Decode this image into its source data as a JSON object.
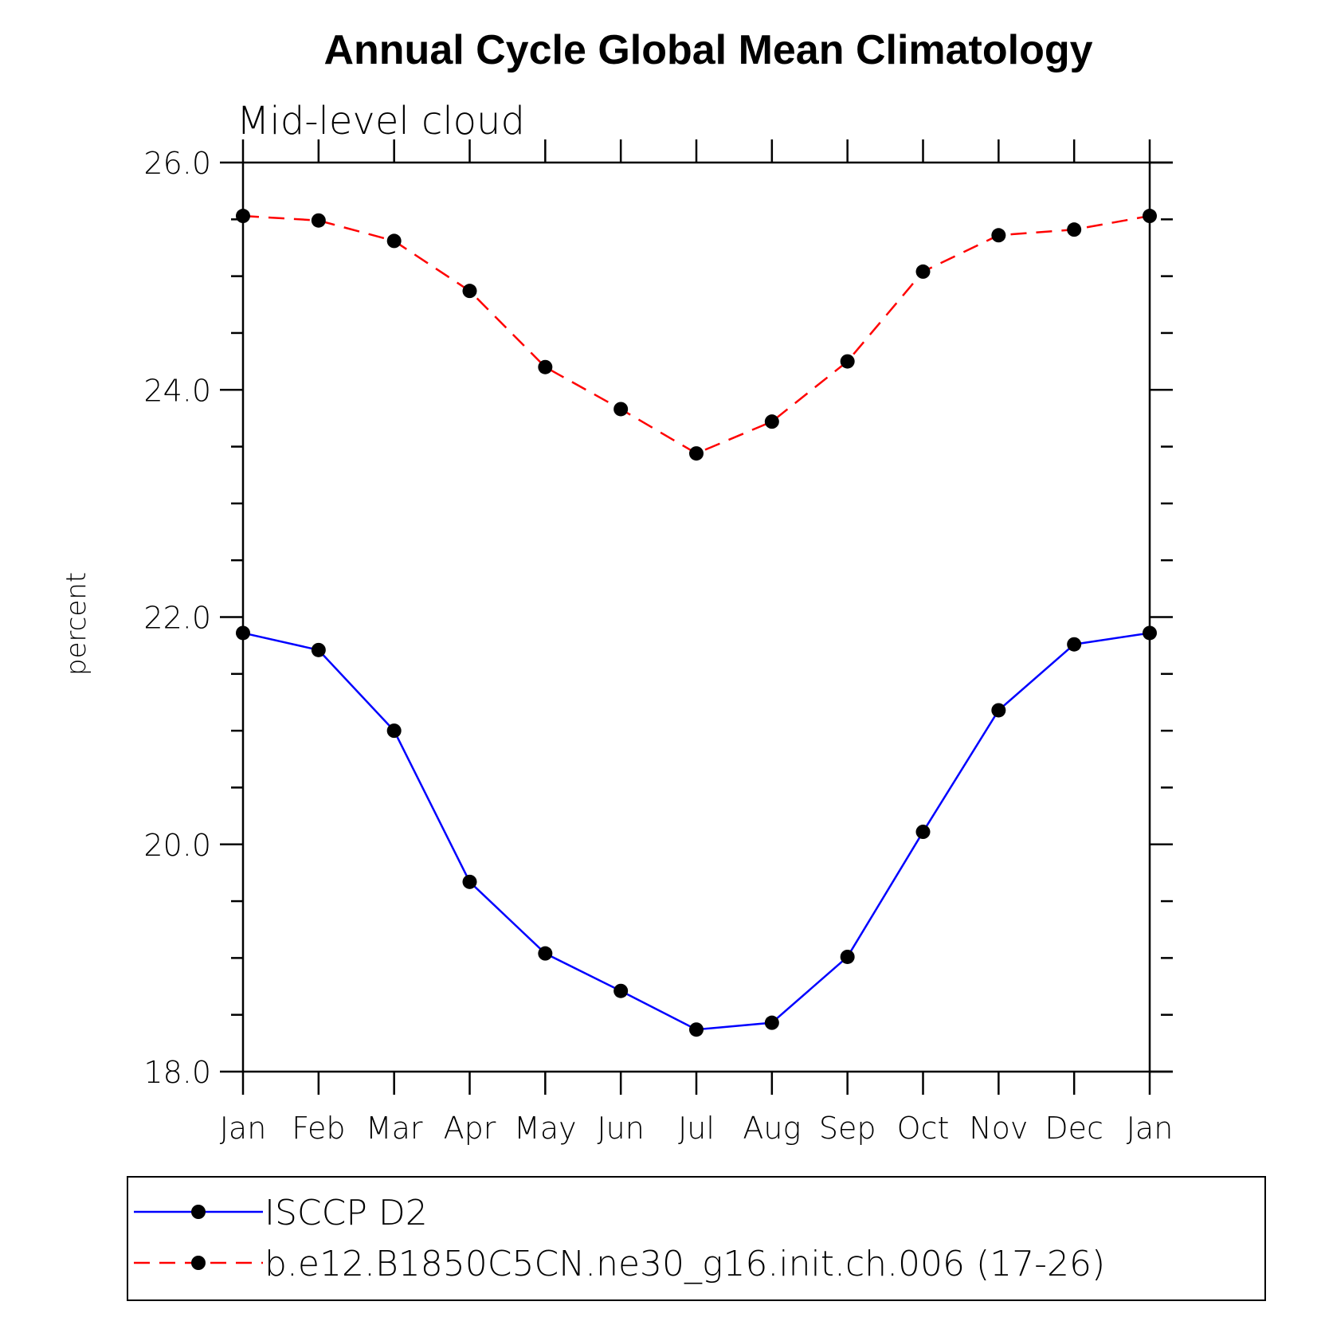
{
  "chart_data": {
    "type": "line",
    "title": "Annual Cycle Global Mean Climatology",
    "subtitle": "Mid-level cloud",
    "xlabel": "",
    "ylabel": "percent",
    "ylim": [
      18.0,
      26.0
    ],
    "y_major_ticks": [
      18.0,
      20.0,
      22.0,
      24.0,
      26.0
    ],
    "y_tick_labels": [
      "18.0",
      "20.0",
      "22.0",
      "24.0",
      "26.0"
    ],
    "y_minor_step": 0.5,
    "categories": [
      "Jan",
      "Feb",
      "Mar",
      "Apr",
      "May",
      "Jun",
      "Jul",
      "Aug",
      "Sep",
      "Oct",
      "Nov",
      "Dec",
      "Jan"
    ],
    "grid": false,
    "legend_position": "bottom",
    "series": [
      {
        "name": "ISCCP D2",
        "color": "#0000ff",
        "dash": "solid",
        "marker": "filled-circle",
        "values": [
          21.86,
          21.71,
          21.0,
          19.67,
          19.04,
          18.71,
          18.37,
          18.43,
          19.01,
          20.11,
          21.18,
          21.76,
          21.86
        ]
      },
      {
        "name": "b.e12.B1850C5CN.ne30_g16.init.ch.006 (17-26)",
        "color": "#ff0000",
        "dash": "dashed",
        "marker": "filled-circle",
        "values": [
          25.53,
          25.49,
          25.31,
          24.87,
          24.2,
          23.83,
          23.44,
          23.72,
          24.25,
          25.04,
          25.36,
          25.41,
          25.53
        ]
      }
    ]
  }
}
